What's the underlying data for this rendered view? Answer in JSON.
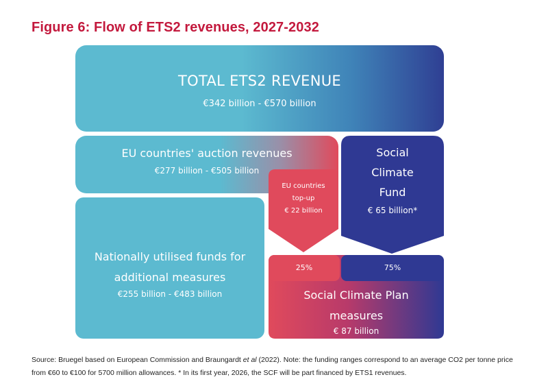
{
  "title": "Figure 6: Flow of ETS2 revenues, 2027-2032",
  "total": {
    "label": "TOTAL ETS2 REVENUE",
    "amount": "€342 billion - €570 billion"
  },
  "auction": {
    "label": "EU countries' auction revenues",
    "amount": "€277 billion - €505 billion"
  },
  "topup": {
    "line1": "EU countries",
    "line2": "top-up",
    "amount": "€ 22 billion"
  },
  "scf": {
    "line1": "Social",
    "line2": "Climate",
    "line3": "Fund",
    "amount": "€ 65 billion*"
  },
  "national": {
    "line1": "Nationally utilised funds for",
    "line2": "additional measures",
    "amount": "€255 billion - €483 billion"
  },
  "plan": {
    "pct_left": "25%",
    "pct_right": "75%",
    "line1": "Social Climate Plan",
    "line2": "measures",
    "amount": "€ 87 billion"
  },
  "source": {
    "text_a": "Source: Bruegel based on European Commission and Braungardt ",
    "text_em": "et al",
    "text_b": " (2022). Note: the funding ranges correspond to an average CO2 per tonne price from €60 to €100 for 5700 million allowances. * In its first year, 2026, the SCF will be part financed by ETS1 revenues."
  },
  "colors": {
    "teal": "#5cbad0",
    "navy": "#2f3993",
    "red": "#e04a5c",
    "title": "#c3193d"
  }
}
